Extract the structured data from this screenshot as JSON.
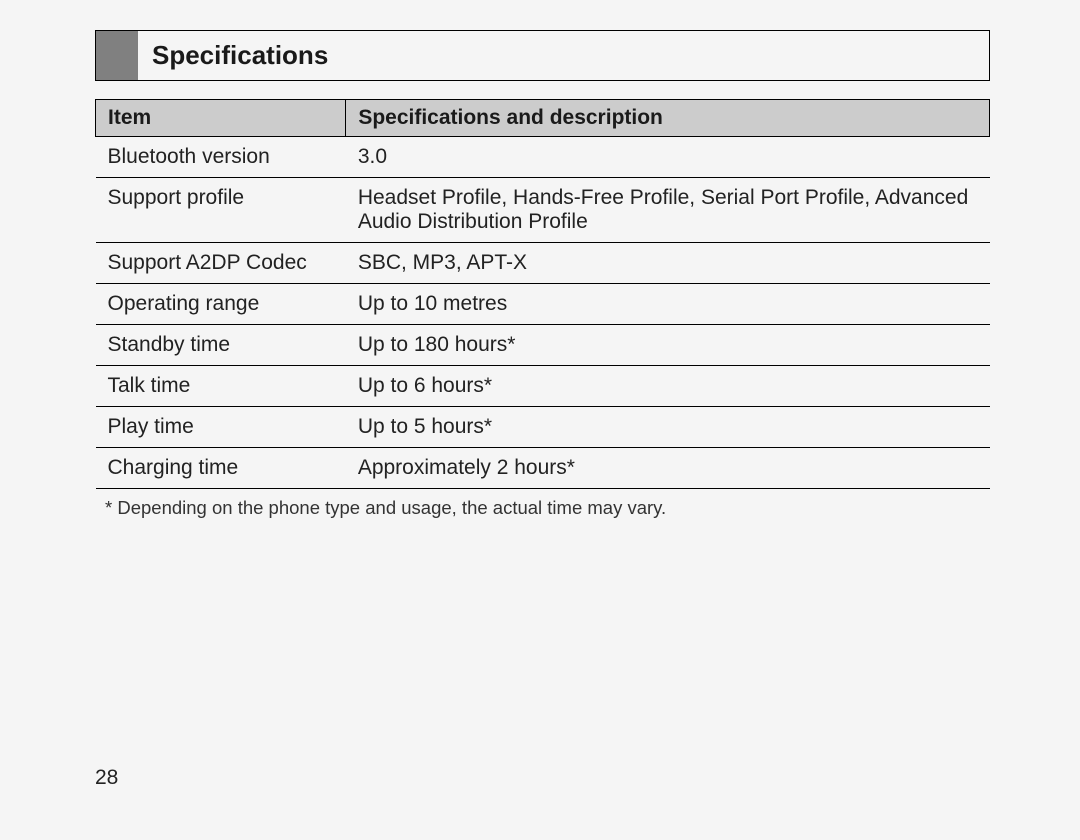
{
  "section_title": "Specifications",
  "table": {
    "columns": [
      "Item",
      "Specifications and description"
    ],
    "rows": [
      {
        "item": "Bluetooth version",
        "desc": "3.0"
      },
      {
        "item": "Support profile",
        "desc": "Headset Profile, Hands-Free Profile, Serial Port Profile, Advanced Audio Distribution Profile"
      },
      {
        "item": "Support A2DP Codec",
        "desc": "SBC, MP3, APT-X"
      },
      {
        "item": "Operating range",
        "desc": "Up to 10 metres"
      },
      {
        "item": "Standby time",
        "desc": "Up to 180 hours*"
      },
      {
        "item": "Talk time",
        "desc": "Up to 6 hours*"
      },
      {
        "item": "Play time",
        "desc": "Up to 5 hours*"
      },
      {
        "item": "Charging time",
        "desc": "Approximately 2 hours*"
      }
    ],
    "header_bg": "#cccccc",
    "border_color": "#000000",
    "item_col_width": "28%",
    "font_size": 21
  },
  "footnote": "*   Depending on the phone type and usage, the actual time may vary.",
  "page_number": "28",
  "colors": {
    "page_bg": "#f5f5f5",
    "gray_block": "#808080",
    "text": "#2a2a2a"
  }
}
